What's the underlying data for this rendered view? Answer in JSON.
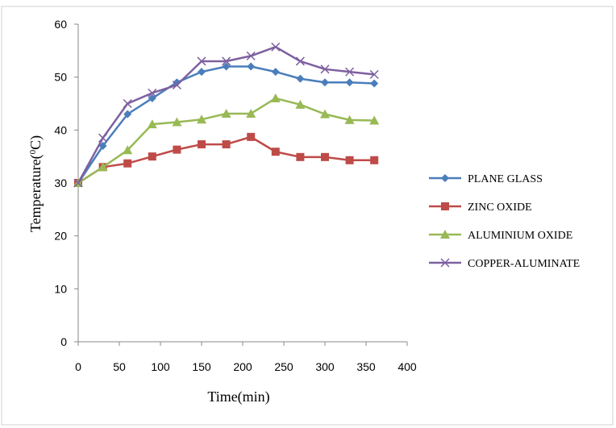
{
  "chart_data": {
    "type": "line",
    "title": "",
    "xlabel": "Time(min)",
    "ylabel_main": "Temperature(",
    "ylabel_sup": "0",
    "ylabel_tail": "C)",
    "xlim": [
      0,
      400
    ],
    "ylim": [
      0,
      60
    ],
    "xticks": [
      0,
      50,
      100,
      150,
      200,
      250,
      300,
      350,
      400
    ],
    "yticks": [
      0,
      10,
      20,
      30,
      40,
      50,
      60
    ],
    "grid": false,
    "legend_position": "right",
    "x": [
      0,
      30,
      60,
      90,
      120,
      150,
      180,
      210,
      240,
      270,
      300,
      330,
      360
    ],
    "series": [
      {
        "name": "PLANE GLASS",
        "color": "#4a7ebb",
        "marker": "diamond",
        "values": [
          30,
          37,
          43,
          46,
          49,
          51,
          52,
          52,
          51,
          49.7,
          49,
          49,
          48.8
        ]
      },
      {
        "name": "ZINC OXIDE",
        "color": "#be4b48",
        "marker": "square",
        "values": [
          30,
          33,
          33.7,
          35,
          36.3,
          37.3,
          37.3,
          38.7,
          35.9,
          34.9,
          34.9,
          34.3,
          34.3
        ]
      },
      {
        "name": "ALUMINIUM OXIDE",
        "color": "#98b954",
        "marker": "triangle",
        "values": [
          30,
          33,
          36.2,
          41.1,
          41.5,
          42,
          43.1,
          43.1,
          46,
          44.8,
          43,
          41.9,
          41.8
        ]
      },
      {
        "name": "COPPER-ALUMINATE",
        "color": "#7d60a0",
        "marker": "x",
        "values": [
          30,
          38.5,
          45,
          47,
          48.5,
          53,
          53,
          54,
          55.7,
          53,
          51.5,
          51,
          50.5
        ]
      }
    ]
  }
}
